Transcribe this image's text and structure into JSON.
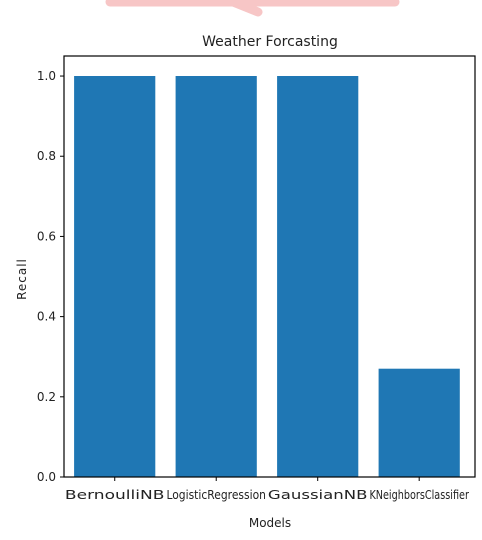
{
  "chart_data": {
    "type": "bar",
    "title": "Weather Forcasting",
    "xlabel": "Models",
    "ylabel": "Recall",
    "categories": [
      "BernoulliNB",
      "LogisticRegression",
      "GaussianNB",
      "KNeighborsClassifier"
    ],
    "values": [
      1.0,
      1.0,
      1.0,
      0.27
    ],
    "ylim": [
      0,
      1.05
    ],
    "yticks": [
      0.0,
      0.2,
      0.4,
      0.6,
      0.8,
      1.0
    ],
    "ytick_labels": [
      "0.0",
      "0.2",
      "0.4",
      "0.6",
      "0.8",
      "1.0"
    ],
    "grid": false,
    "bar_color": "#1f77b4"
  }
}
